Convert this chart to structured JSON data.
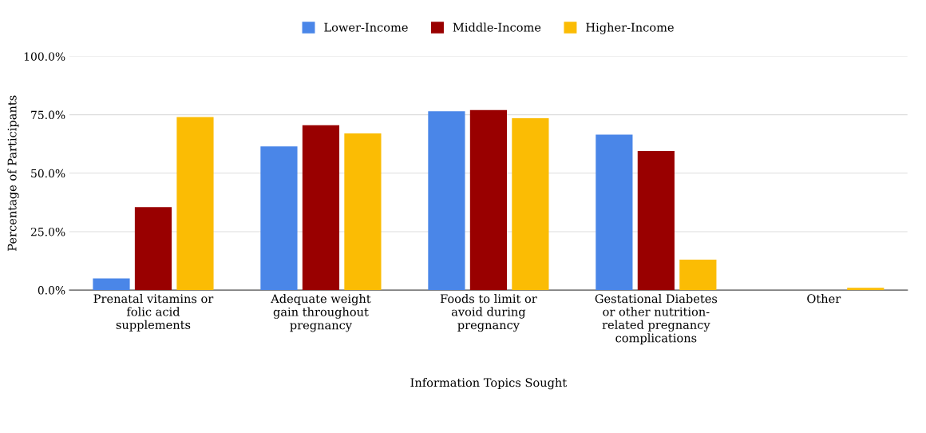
{
  "chart_data": {
    "type": "bar",
    "xlabel": "Information Topics Sought",
    "ylabel": "Percentage of Participants",
    "categories": [
      "Prenatal vitamins or\nfolic acid\nsupplements",
      "Adequate weight\ngain throughout\npregnancy",
      "Foods to limit or\navoid during\npregnancy",
      "Gestational Diabetes\nor other nutrition-\nrelated pregnancy\ncomplications",
      "Other"
    ],
    "series": [
      {
        "name": "Lower-Income",
        "color": "#4a86e8",
        "values": [
          5,
          61.5,
          76.5,
          66.5,
          0
        ]
      },
      {
        "name": "Middle-Income",
        "color": "#990000",
        "values": [
          35.5,
          70.5,
          77,
          59.5,
          0
        ]
      },
      {
        "name": "Higher-Income",
        "color": "#fbbc04",
        "values": [
          74,
          67,
          73.5,
          13,
          1
        ]
      }
    ],
    "ylim": [
      0,
      100
    ],
    "yticks": [
      {
        "value": 0,
        "label": "0.0%"
      },
      {
        "value": 25,
        "label": "25.0%"
      },
      {
        "value": 50,
        "label": "50.0%"
      },
      {
        "value": 75,
        "label": "75.0%"
      },
      {
        "value": 100,
        "label": "100.0%"
      }
    ],
    "grid": "y",
    "legend": "top"
  }
}
